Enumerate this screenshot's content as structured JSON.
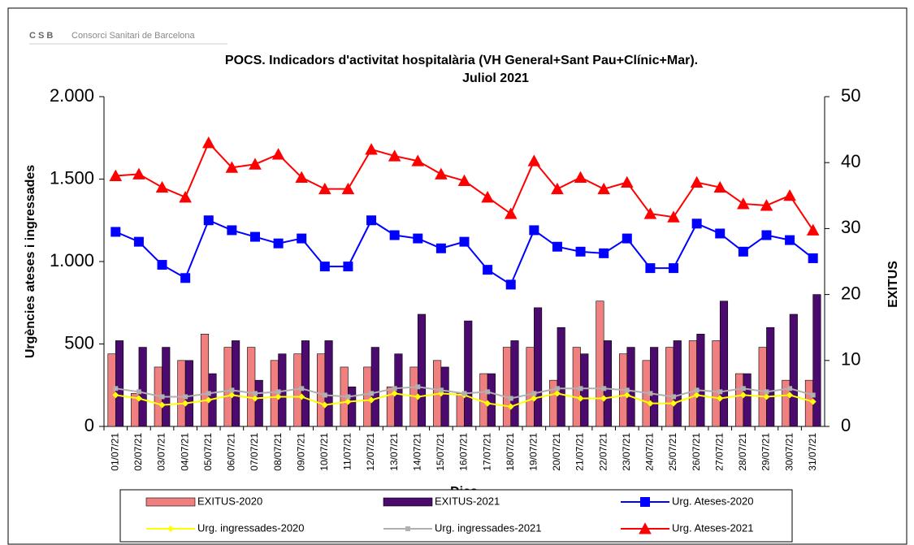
{
  "logo": {
    "mark": "C S B",
    "name": "Consorci Sanitari de Barcelona"
  },
  "chart_data": {
    "type": "combo",
    "title": "POCS.  Indicadors d'activitat hospitalària (VH General+Sant Pau+Clínic+Mar).",
    "subtitle": "Juliol 2021",
    "x_label": "Dies",
    "y_label": "Urgències ateses i ingressades",
    "y2_label": "EXITUS",
    "categories": [
      "01/07/21",
      "02/07/21",
      "03/07/21",
      "04/07/21",
      "05/07/21",
      "06/07/21",
      "07/07/21",
      "08/07/21",
      "09/07/21",
      "10/07/21",
      "11/07/21",
      "12/07/21",
      "13/07/21",
      "14/07/21",
      "15/07/21",
      "16/07/21",
      "17/07/21",
      "18/07/21",
      "19/07/21",
      "20/07/21",
      "21/07/21",
      "22/07/21",
      "23/07/21",
      "24/07/21",
      "25/07/21",
      "26/07/21",
      "27/07/21",
      "28/07/21",
      "29/07/21",
      "30/07/21",
      "31/07/21"
    ],
    "ylim": [
      0,
      2000
    ],
    "yticks": [
      0,
      500,
      {
        "value": 1000,
        "label": "1.000"
      },
      {
        "value": 1500,
        "label": "1.500"
      },
      {
        "value": 2000,
        "label": "2.000"
      }
    ],
    "y2lim": [
      0,
      50
    ],
    "y2ticks": [
      0,
      10,
      20,
      30,
      40,
      50
    ],
    "series": [
      {
        "name": "EXITUS-2020",
        "color": "#f08080",
        "kind": "bar",
        "axis": "y2",
        "values": [
          11,
          5,
          9,
          10,
          14,
          12,
          12,
          10,
          11,
          11,
          9,
          9,
          6,
          9,
          10,
          5,
          8,
          12,
          12,
          7,
          12,
          19,
          11,
          10,
          12,
          13,
          13,
          8,
          12,
          7,
          7
        ]
      },
      {
        "name": "EXITUS-2021",
        "color": "#4b0a6e",
        "kind": "bar",
        "axis": "y2",
        "values": [
          13,
          12,
          12,
          10,
          8,
          13,
          7,
          11,
          13,
          13,
          6,
          12,
          11,
          17,
          9,
          16,
          8,
          13,
          18,
          15,
          11,
          13,
          12,
          12,
          13,
          14,
          19,
          8,
          15,
          17,
          20
        ]
      },
      {
        "name": "Urg. Ateses-2020",
        "color": "#0000ff",
        "kind": "line",
        "marker": "square",
        "values": [
          1180,
          1120,
          980,
          900,
          1250,
          1190,
          1150,
          1110,
          1140,
          970,
          970,
          1250,
          1160,
          1140,
          1080,
          1120,
          950,
          860,
          1190,
          1090,
          1060,
          1050,
          1140,
          960,
          960,
          1230,
          1170,
          1060,
          1160,
          1130,
          1020
        ]
      },
      {
        "name": "Urg. ingressades-2020",
        "color": "#ffff00",
        "kind": "line",
        "marker": "diamond",
        "values": [
          190,
          170,
          130,
          140,
          160,
          190,
          170,
          180,
          180,
          130,
          150,
          160,
          200,
          180,
          200,
          190,
          140,
          120,
          170,
          200,
          170,
          170,
          190,
          140,
          140,
          190,
          170,
          190,
          180,
          190,
          150
        ]
      },
      {
        "name": "Urg. ingressades-2021",
        "color": "#b0b0b0",
        "kind": "line",
        "marker": "square",
        "values": [
          230,
          210,
          180,
          180,
          200,
          220,
          200,
          210,
          230,
          190,
          180,
          200,
          230,
          240,
          220,
          200,
          210,
          170,
          200,
          230,
          230,
          230,
          220,
          200,
          180,
          220,
          210,
          230,
          210,
          230,
          190
        ]
      },
      {
        "name": "Urg. Ateses-2021",
        "color": "#ff0000",
        "kind": "line",
        "marker": "triangle",
        "values": [
          1520,
          1530,
          1450,
          1390,
          1720,
          1570,
          1590,
          1650,
          1510,
          1440,
          1440,
          1680,
          1640,
          1610,
          1530,
          1490,
          1390,
          1290,
          1610,
          1440,
          1510,
          1440,
          1480,
          1290,
          1270,
          1480,
          1450,
          1350,
          1340,
          1400,
          1190
        ]
      }
    ]
  }
}
